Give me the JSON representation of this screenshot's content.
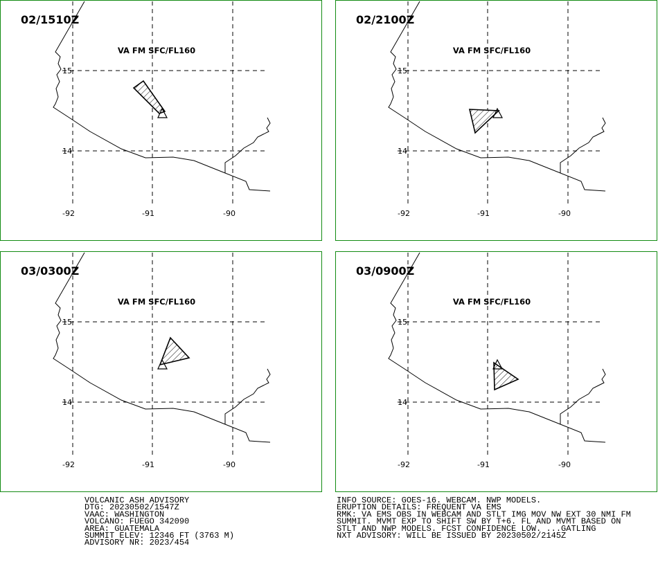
{
  "panels": [
    {
      "time": "02/1510Z",
      "level": "VA FM SFC/FL160"
    },
    {
      "time": "02/2100Z",
      "level": "VA FM SFC/FL160"
    },
    {
      "time": "03/0300Z",
      "level": "VA FM SFC/FL160"
    },
    {
      "time": "03/0900Z",
      "level": "VA FM SFC/FL160"
    }
  ],
  "lat_labels": [
    "15",
    "14"
  ],
  "lon_labels": [
    "-92",
    "-91",
    "-90"
  ],
  "advisory": {
    "left": [
      "VOLCANIC ASH ADVISORY",
      "DTG: 20230502/1547Z",
      "VAAC: WASHINGTON",
      "VOLCANO: FUEGO 342090",
      "AREA: GUATEMALA",
      "SUMMIT ELEV: 12346 FT (3763 M)",
      "ADVISORY NR: 2023/454"
    ],
    "right": [
      "INFO SOURCE: GOES-16. WEBCAM. NWP MODELS.",
      "ERUPTION DETAILS: FREQUENT VA EMS",
      "RMK: VA EMS OBS IN WEBCAM AND STLT IMG MOV NW EXT 30 NMI FM",
      "SUMMIT. MVMT EXP TO SHIFT SW BY T+6. FL AND MVMT BASED ON",
      "STLT AND NWP MODELS. FCST CONFIDENCE LOW. ...GATLING",
      "NXT ADVISORY: WILL BE ISSUED BY 20230502/2145Z"
    ]
  }
}
